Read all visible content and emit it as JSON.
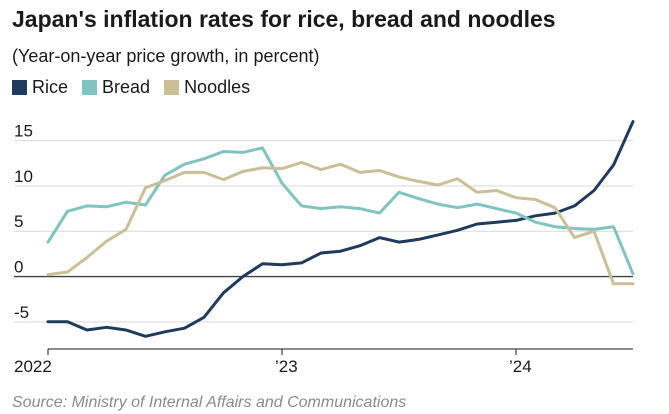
{
  "chart_data": {
    "type": "line",
    "title": "Japan's inflation rates for rice, bread and noodles",
    "subtitle": "(Year-on-year price growth, in percent)",
    "xlabel": "",
    "ylabel": "",
    "ylim": [
      -8,
      17.5
    ],
    "yticks": [
      -5,
      0,
      5,
      10,
      15
    ],
    "ytick_labels": [
      "-5",
      "0",
      "5",
      "10",
      "15"
    ],
    "x_start": "2022-01",
    "x_end": "2024-07",
    "xticks": [
      {
        "month_index": 0,
        "label": "2022"
      },
      {
        "month_index": 12,
        "label": "’23"
      },
      {
        "month_index": 24,
        "label": "’24"
      }
    ],
    "legend_position": "top-left",
    "series": [
      {
        "name": "Rice",
        "color": "#1f3a5f",
        "values": [
          -5.0,
          -5.0,
          -5.9,
          -5.6,
          -5.9,
          -6.6,
          -6.1,
          -5.7,
          -4.5,
          -1.8,
          0.0,
          1.4,
          1.3,
          1.5,
          2.6,
          2.8,
          3.4,
          4.3,
          3.8,
          4.1,
          4.6,
          5.1,
          5.8,
          6.0,
          6.2,
          6.7,
          7.0,
          7.8,
          9.5,
          12.3,
          17.1
        ]
      },
      {
        "name": "Bread",
        "color": "#7fc4c1",
        "values": [
          3.8,
          7.2,
          7.8,
          7.7,
          8.2,
          7.9,
          11.2,
          12.4,
          13.0,
          13.8,
          13.7,
          14.2,
          10.3,
          7.8,
          7.5,
          7.7,
          7.5,
          7.0,
          9.3,
          8.6,
          8.0,
          7.6,
          8.0,
          7.5,
          7.0,
          6.0,
          5.5,
          5.3,
          5.2,
          5.5,
          0.3
        ]
      },
      {
        "name": "Noodles",
        "color": "#cbbf98",
        "values": [
          0.2,
          0.5,
          2.1,
          3.9,
          5.2,
          9.8,
          10.6,
          11.5,
          11.5,
          10.7,
          11.6,
          12.0,
          11.9,
          12.6,
          11.8,
          12.4,
          11.5,
          11.7,
          11.0,
          10.5,
          10.1,
          10.8,
          9.3,
          9.5,
          8.7,
          8.5,
          7.6,
          4.3,
          5.0,
          -0.8,
          -0.8
        ]
      }
    ],
    "source": "Source: Ministry of Internal Affairs and Communications"
  }
}
